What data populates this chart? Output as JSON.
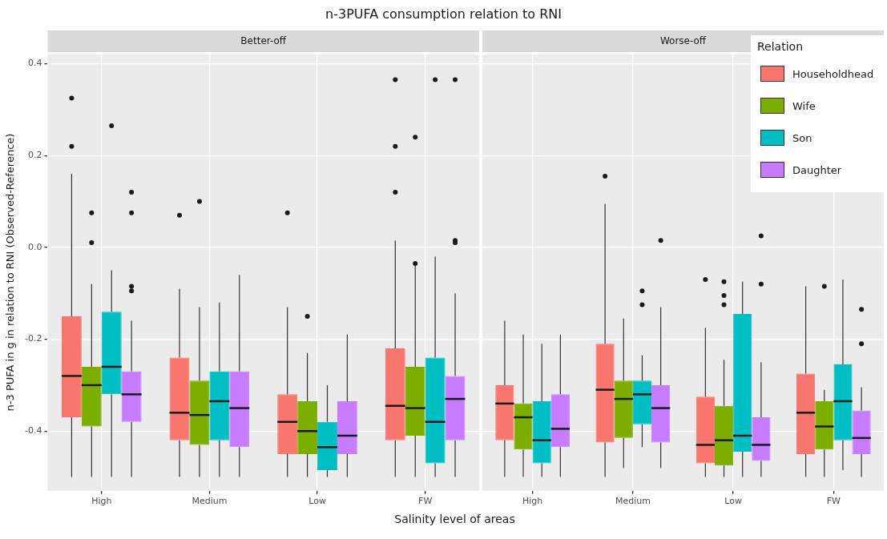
{
  "chart_data": [
    {
      "type": "box",
      "title": "n-3PUFA consumption relation to RNI",
      "subtitle": "Better-off",
      "xlabel": "Salinity level of areas",
      "ylabel": "n-3 PUFA in g in relation to RNI (Observed-Reference)",
      "categories": [
        "High",
        "Medium",
        "Low",
        "FW"
      ],
      "ylim": [
        -0.53,
        0.42
      ],
      "yticks": [
        -0.4,
        -0.2,
        {
          "value": 0,
          "label": "0.0"
        },
        0.2,
        0.4
      ],
      "grid": true,
      "series": [
        {
          "color": "#f8766d",
          "boxes": [
            {
              "low": -0.5,
              "q1": -0.37,
              "median": -0.28,
              "q3": -0.15,
              "high": 0.16,
              "outliers": [
                0.325,
                0.22
              ]
            },
            {
              "low": -0.5,
              "q1": -0.42,
              "median": -0.36,
              "q3": -0.24,
              "high": -0.09,
              "outliers": [
                0.07
              ]
            },
            {
              "low": -0.5,
              "q1": -0.45,
              "median": -0.38,
              "q3": -0.32,
              "high": -0.13,
              "outliers": [
                0.075
              ]
            },
            {
              "low": -0.5,
              "q1": -0.42,
              "median": -0.345,
              "q3": -0.22,
              "high": 0.015,
              "outliers": [
                0.365,
                0.22,
                0.12
              ]
            }
          ]
        },
        {
          "color": "#7cae00",
          "boxes": [
            {
              "low": -0.5,
              "q1": -0.39,
              "median": -0.3,
              "q3": -0.26,
              "high": -0.08,
              "outliers": [
                0.075,
                0.01
              ]
            },
            {
              "low": -0.5,
              "q1": -0.43,
              "median": -0.365,
              "q3": -0.29,
              "high": -0.13,
              "outliers": [
                0.1
              ]
            },
            {
              "low": -0.5,
              "q1": -0.45,
              "median": -0.4,
              "q3": -0.335,
              "high": -0.23,
              "outliers": [
                -0.15
              ]
            },
            {
              "low": -0.5,
              "q1": -0.41,
              "median": -0.35,
              "q3": -0.26,
              "high": -0.04,
              "outliers": [
                0.24,
                -0.035
              ]
            }
          ]
        },
        {
          "color": "#00bfc4",
          "boxes": [
            {
              "low": -0.5,
              "q1": -0.32,
              "median": -0.26,
              "q3": -0.14,
              "high": -0.05,
              "outliers": [
                0.265
              ]
            },
            {
              "low": -0.5,
              "q1": -0.42,
              "median": -0.335,
              "q3": -0.27,
              "high": -0.12
            },
            {
              "low": -0.5,
              "q1": -0.485,
              "median": -0.435,
              "q3": -0.38,
              "high": -0.3
            },
            {
              "low": -0.5,
              "q1": -0.47,
              "median": -0.38,
              "q3": -0.24,
              "high": -0.02,
              "outliers": [
                0.365
              ]
            }
          ]
        },
        {
          "color": "#c77cff",
          "boxes": [
            {
              "low": -0.5,
              "q1": -0.38,
              "median": -0.32,
              "q3": -0.27,
              "high": -0.16,
              "outliers": [
                0.12,
                0.075,
                -0.085,
                -0.095
              ]
            },
            {
              "low": -0.5,
              "q1": -0.435,
              "median": -0.35,
              "q3": -0.27,
              "high": -0.06
            },
            {
              "low": -0.5,
              "q1": -0.45,
              "median": -0.41,
              "q3": -0.335,
              "high": -0.19
            },
            {
              "low": -0.5,
              "q1": -0.42,
              "median": -0.33,
              "q3": -0.28,
              "high": -0.1,
              "outliers": [
                0.365,
                0.015,
                0.01
              ]
            }
          ]
        }
      ]
    },
    {
      "type": "box",
      "subtitle": "Worse-off",
      "categories": [
        "High",
        "Medium",
        "Low",
        "FW"
      ],
      "ylim": [
        -0.53,
        0.42
      ],
      "yticks": [
        -0.4,
        -0.2,
        0,
        0.2,
        0.4
      ],
      "tick_labels": "x",
      "grid": true,
      "legend": "top right",
      "legend_title": "Relation",
      "series": [
        {
          "name": "Householdhead",
          "color": "#f8766d",
          "boxes": [
            {
              "low": -0.5,
              "q1": -0.42,
              "median": -0.34,
              "q3": -0.3,
              "high": -0.16
            },
            {
              "low": -0.5,
              "q1": -0.425,
              "median": -0.31,
              "q3": -0.21,
              "high": 0.095,
              "outliers": [
                0.155
              ]
            },
            {
              "low": -0.5,
              "q1": -0.47,
              "median": -0.43,
              "q3": -0.325,
              "high": -0.175,
              "outliers": [
                -0.07
              ]
            },
            {
              "low": -0.5,
              "q1": -0.45,
              "median": -0.36,
              "q3": -0.275,
              "high": -0.085
            }
          ]
        },
        {
          "name": "Wife",
          "color": "#7cae00",
          "boxes": [
            {
              "low": -0.5,
              "q1": -0.44,
              "median": -0.37,
              "q3": -0.34,
              "high": -0.19
            },
            {
              "low": -0.48,
              "q1": -0.415,
              "median": -0.33,
              "q3": -0.29,
              "high": -0.155
            },
            {
              "low": -0.5,
              "q1": -0.475,
              "median": -0.42,
              "q3": -0.345,
              "high": -0.245,
              "outliers": [
                -0.075,
                -0.105,
                -0.125
              ]
            },
            {
              "low": -0.5,
              "q1": -0.44,
              "median": -0.39,
              "q3": -0.335,
              "high": -0.31,
              "outliers": [
                -0.085
              ]
            }
          ]
        },
        {
          "name": "Son",
          "color": "#00bfc4",
          "boxes": [
            {
              "low": -0.5,
              "q1": -0.47,
              "median": -0.42,
              "q3": -0.335,
              "high": -0.21
            },
            {
              "low": -0.435,
              "q1": -0.385,
              "median": -0.32,
              "q3": -0.29,
              "high": -0.235,
              "outliers": [
                -0.095,
                -0.125
              ]
            },
            {
              "low": -0.5,
              "q1": -0.445,
              "median": -0.41,
              "q3": -0.145,
              "high": -0.075
            },
            {
              "low": -0.485,
              "q1": -0.42,
              "median": -0.335,
              "q3": -0.255,
              "high": -0.07
            }
          ]
        },
        {
          "name": "Daughter",
          "color": "#c77cff",
          "boxes": [
            {
              "low": -0.5,
              "q1": -0.435,
              "median": -0.395,
              "q3": -0.32,
              "high": -0.19
            },
            {
              "low": -0.48,
              "q1": -0.425,
              "median": -0.35,
              "q3": -0.3,
              "high": -0.13,
              "outliers": [
                0.015
              ]
            },
            {
              "low": -0.5,
              "q1": -0.465,
              "median": -0.43,
              "q3": -0.37,
              "high": -0.25,
              "outliers": [
                0.025,
                -0.08
              ]
            },
            {
              "low": -0.5,
              "q1": -0.45,
              "median": -0.415,
              "q3": -0.355,
              "high": -0.305,
              "outliers": [
                -0.135,
                -0.21
              ]
            }
          ]
        }
      ]
    }
  ]
}
